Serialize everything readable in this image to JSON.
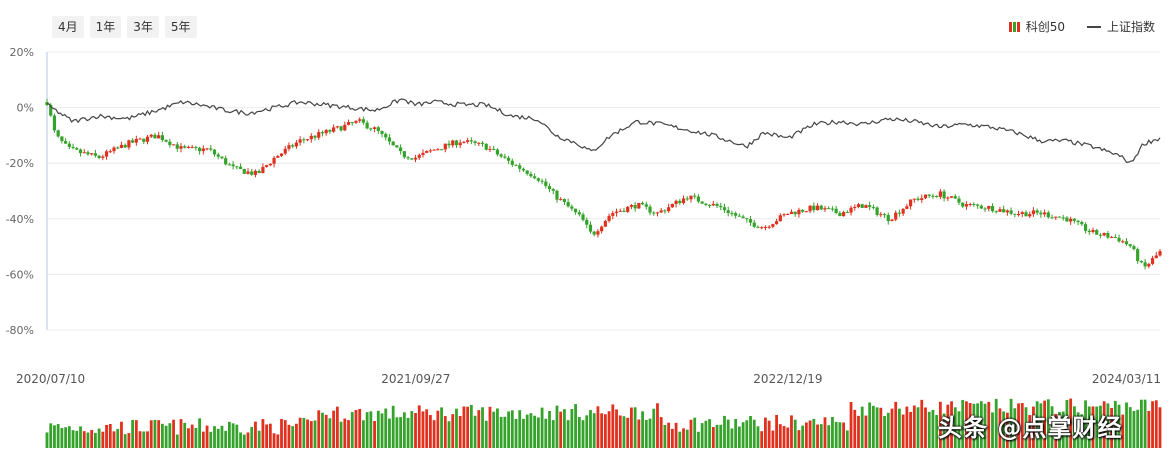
{
  "toolbar": {
    "ranges": [
      "4月",
      "1年",
      "3年",
      "5年"
    ]
  },
  "legend": {
    "candle_label": "科创50",
    "line_label": "上证指数",
    "up_color": "#e0301e",
    "down_color": "#35a32b",
    "line_color": "#444444"
  },
  "watermark": "头条 @点掌财经",
  "chart_data": {
    "type": "line",
    "y_axis": {
      "ticks": [
        "20%",
        "0%",
        "-20%",
        "-40%",
        "-60%",
        "-80%"
      ],
      "tick_values": [
        20,
        0,
        -20,
        -40,
        -60,
        -80
      ],
      "range": [
        -80,
        20
      ]
    },
    "x_axis": {
      "tick_labels": [
        "2020/07/10",
        "2021/09/27",
        "2022/12/19",
        "2024/03/11"
      ],
      "range": [
        "2020/07/10",
        "2024/03/11"
      ]
    },
    "grid": true,
    "legend_position": "top-right",
    "series": [
      {
        "name": "科创50",
        "kind": "candlestick",
        "x": [
          "2020/07/10",
          "2020/07/20",
          "2020/08/05",
          "2020/09/10",
          "2020/10/15",
          "2020/11/20",
          "2020/12/20",
          "2021/01/20",
          "2021/02/20",
          "2021/03/20",
          "2021/04/10",
          "2021/05/10",
          "2021/06/20",
          "2021/07/20",
          "2021/08/10",
          "2021/09/10",
          "2021/09/27",
          "2021/10/20",
          "2021/11/20",
          "2021/12/20",
          "2022/01/20",
          "2022/02/20",
          "2022/03/15",
          "2022/04/15",
          "2022/04/27",
          "2022/05/20",
          "2022/06/20",
          "2022/07/15",
          "2022/08/20",
          "2022/09/30",
          "2022/10/30",
          "2022/11/20",
          "2022/12/19",
          "2023/01/20",
          "2023/02/20",
          "2023/03/20",
          "2023/04/20",
          "2023/05/20",
          "2023/06/20",
          "2023/07/20",
          "2023/08/20",
          "2023/09/20",
          "2023/10/20",
          "2023/11/20",
          "2023/12/20",
          "2024/01/20",
          "2024/02/05",
          "2024/02/20",
          "2024/03/11"
        ],
        "y": [
          2,
          -10,
          -15,
          -18,
          -13,
          -10,
          -15,
          -15,
          -22,
          -24,
          -18,
          -12,
          -8,
          -5,
          -8,
          -17,
          -18,
          -15,
          -12,
          -14,
          -20,
          -25,
          -32,
          -40,
          -46,
          -38,
          -35,
          -38,
          -32,
          -36,
          -41,
          -43,
          -38,
          -36,
          -38,
          -35,
          -40,
          -33,
          -31,
          -35,
          -36,
          -38,
          -38,
          -40,
          -45,
          -47,
          -50,
          -58,
          -52
        ]
      },
      {
        "name": "上证指数",
        "kind": "line",
        "x": [
          "2020/07/10",
          "2020/08/10",
          "2020/09/10",
          "2020/10/15",
          "2020/11/20",
          "2020/12/20",
          "2021/01/10",
          "2021/02/10",
          "2021/03/10",
          "2021/04/10",
          "2021/05/10",
          "2021/06/10",
          "2021/07/10",
          "2021/08/10",
          "2021/09/10",
          "2021/09/27",
          "2021/10/20",
          "2021/11/20",
          "2021/12/20",
          "2022/01/20",
          "2022/02/20",
          "2022/03/15",
          "2022/04/10",
          "2022/04/27",
          "2022/05/20",
          "2022/06/20",
          "2022/07/20",
          "2022/08/20",
          "2022/09/20",
          "2022/10/30",
          "2022/11/20",
          "2022/12/19",
          "2023/01/20",
          "2023/02/20",
          "2023/03/20",
          "2023/04/20",
          "2023/05/20",
          "2023/06/20",
          "2023/07/20",
          "2023/08/20",
          "2023/09/20",
          "2023/10/20",
          "2023/11/20",
          "2023/12/20",
          "2024/01/20",
          "2024/02/05",
          "2024/02/20",
          "2024/03/11"
        ],
        "y": [
          1,
          -5,
          -3,
          -4,
          -1,
          2,
          1,
          -1,
          -2,
          0,
          2,
          1,
          0,
          -1,
          3,
          1,
          2,
          1,
          1,
          -3,
          -4,
          -10,
          -13,
          -16,
          -10,
          -5,
          -6,
          -8,
          -10,
          -14,
          -9,
          -11,
          -6,
          -5,
          -6,
          -4,
          -5,
          -7,
          -6,
          -7,
          -9,
          -12,
          -12,
          -14,
          -17,
          -20,
          -13,
          -11
        ]
      }
    ]
  }
}
